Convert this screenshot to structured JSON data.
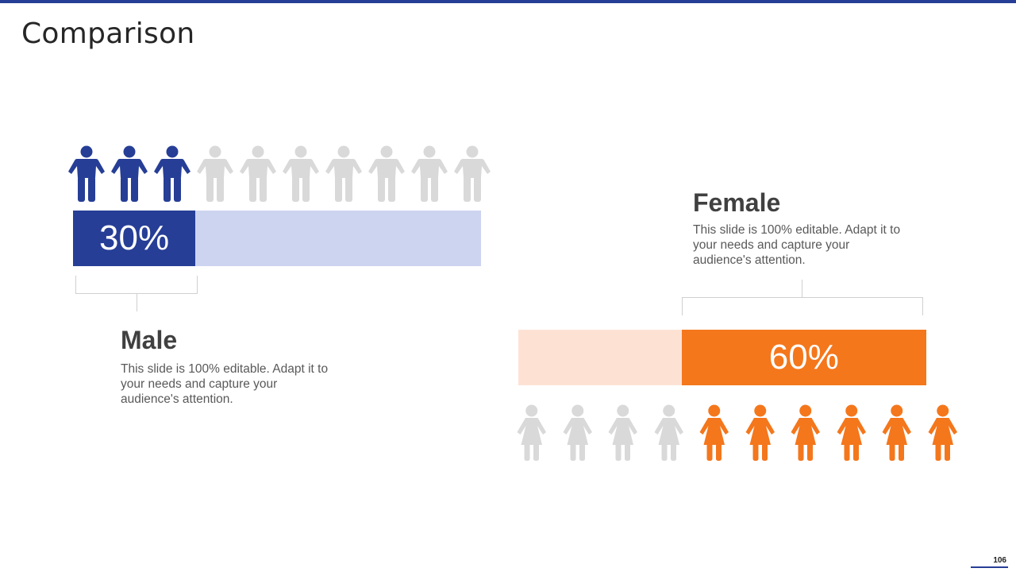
{
  "slide": {
    "title": "Comparison",
    "page_number": "106"
  },
  "colors": {
    "male": "#263e96",
    "male_light": "#cdd4f0",
    "female": "#f4771c",
    "female_light": "#fde2d4",
    "inactive_icon": "#d9d9d9"
  },
  "male": {
    "heading": "Male",
    "percent_label": "30%",
    "percent": 30,
    "icons_total": 10,
    "icons_highlighted": 3,
    "icon": "male-person-icon",
    "description": "This slide is 100% editable. Adapt it to your needs and capture your audience's attention."
  },
  "female": {
    "heading": "Female",
    "percent_label": "60%",
    "percent": 60,
    "icons_total": 10,
    "icons_highlighted": 6,
    "icon": "female-person-icon",
    "description": "This slide is 100% editable. Adapt it to your needs and capture your audience's attention."
  }
}
